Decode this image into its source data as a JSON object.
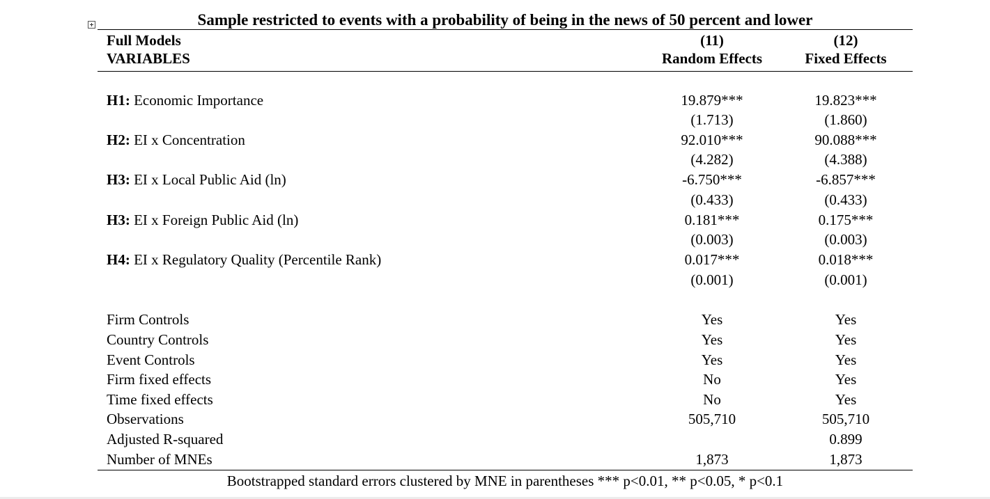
{
  "table": {
    "title": "Sample restricted to events with a probability of being in the news of 50 percent and lower",
    "header": {
      "row1_label": "Full Models",
      "row2_label": "VARIABLES",
      "col1_num": "(11)",
      "col1_name": "Random Effects",
      "col2_num": "(12)",
      "col2_name": "Fixed Effects"
    },
    "hypotheses": [
      {
        "tag": "H1:",
        "label": " Economic Importance",
        "c1": "19.879***",
        "c1_se": "(1.713)",
        "c2": "19.823***",
        "c2_se": "(1.860)"
      },
      {
        "tag": "H2:",
        "label": " EI x Concentration",
        "c1": "92.010***",
        "c1_se": "(4.282)",
        "c2": "90.088***",
        "c2_se": "(4.388)"
      },
      {
        "tag": "H3:",
        "label": " EI x Local Public Aid (ln)",
        "c1": "-6.750***",
        "c1_se": "(0.433)",
        "c2": "-6.857***",
        "c2_se": "(0.433)"
      },
      {
        "tag": "H3:",
        "label": " EI x Foreign Public Aid (ln)",
        "c1": "0.181***",
        "c1_se": "(0.003)",
        "c2": "0.175***",
        "c2_se": "(0.003)"
      },
      {
        "tag": "H4:",
        "label": " EI x Regulatory Quality (Percentile Rank)",
        "c1": "0.017***",
        "c1_se": "(0.001)",
        "c2": "0.018***",
        "c2_se": "(0.001)"
      }
    ],
    "controls": [
      {
        "label": "Firm Controls",
        "c1": "Yes",
        "c2": "Yes"
      },
      {
        "label": "Country Controls",
        "c1": "Yes",
        "c2": "Yes"
      },
      {
        "label": "Event Controls",
        "c1": "Yes",
        "c2": "Yes"
      },
      {
        "label": "Firm fixed effects",
        "c1": "No",
        "c2": "Yes"
      },
      {
        "label": "Time fixed effects",
        "c1": "No",
        "c2": "Yes"
      },
      {
        "label": "Observations",
        "c1": "505,710",
        "c2": "505,710"
      },
      {
        "label": "Adjusted R-squared",
        "c1": "",
        "c2": "0.899"
      },
      {
        "label": "Number of MNEs",
        "c1": "1,873",
        "c2": "1,873"
      }
    ],
    "note": "Bootstrapped standard errors clustered by MNE in parentheses *** p<0.01, ** p<0.05, * p<0.1"
  }
}
